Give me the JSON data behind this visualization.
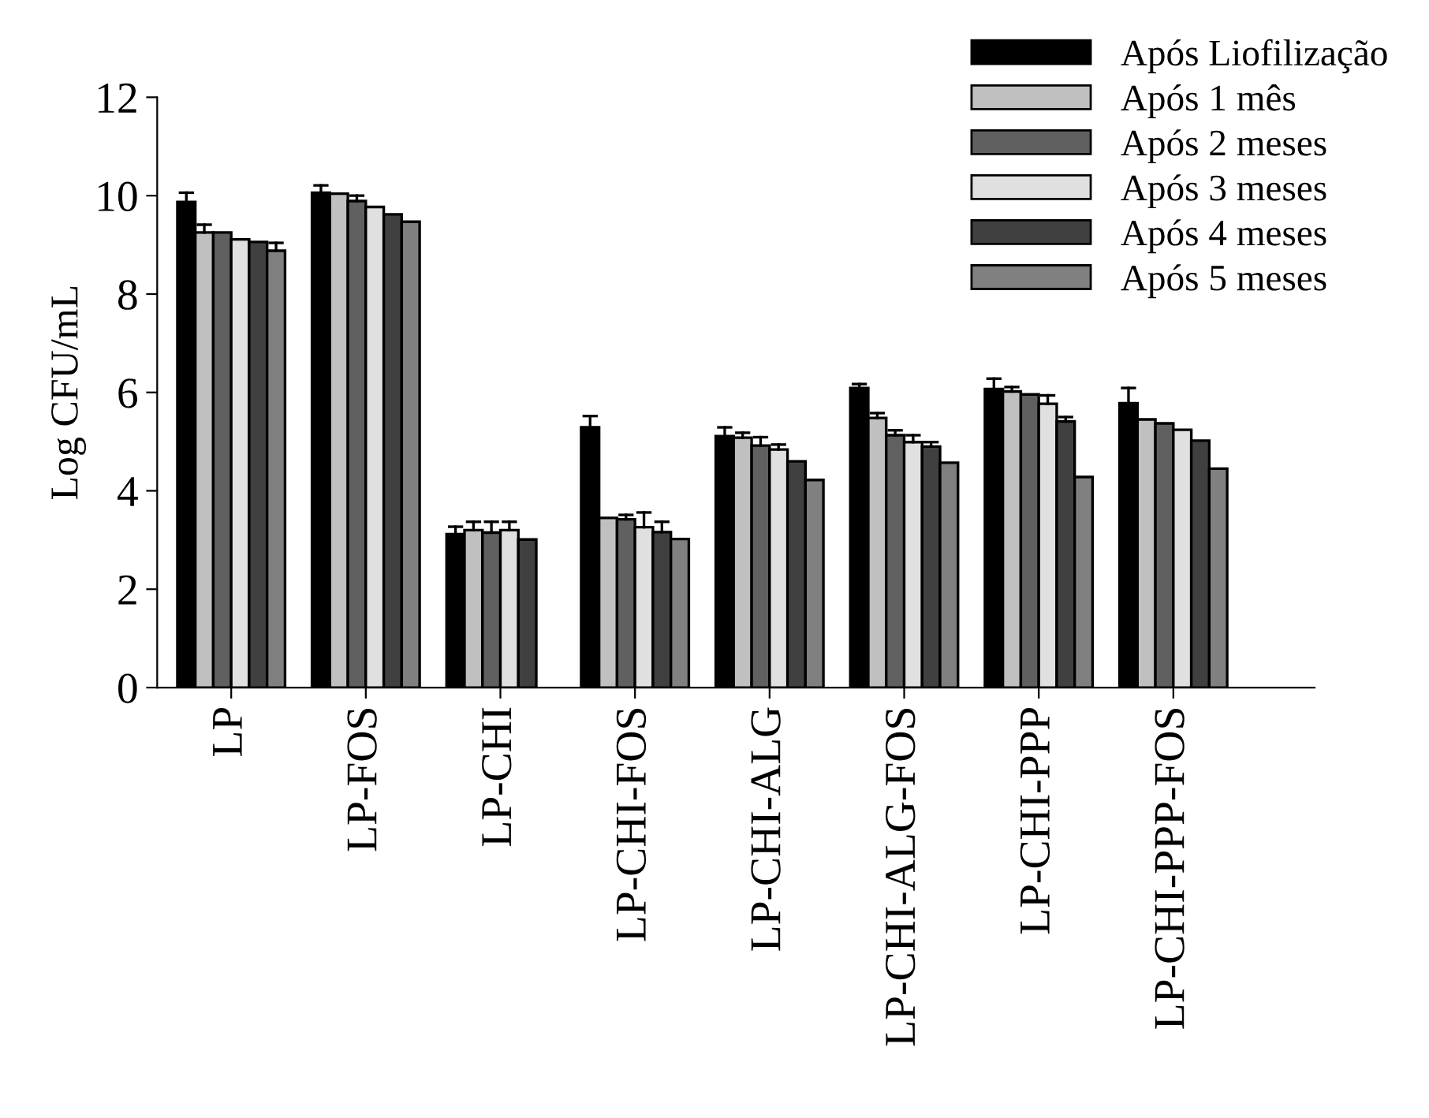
{
  "chart_data": {
    "type": "bar",
    "ylabel": "Log CFU/mL",
    "categories": [
      "LP",
      "LP-FOS",
      "LP-CHI",
      "LP-CHI-FOS",
      "LP-CHI-ALG",
      "LP-CHI-ALG-FOS",
      "LP-CHI-PPP",
      "LP-CHI-PPP-FOS"
    ],
    "ylim": [
      0,
      12
    ],
    "yticks": [
      0,
      2,
      4,
      6,
      8,
      10,
      12
    ],
    "grid": false,
    "legend": "top right",
    "series": [
      {
        "name": "Após Liofilização",
        "color": "#000000",
        "values": [
          9.87,
          10.06,
          3.12,
          5.29,
          5.11,
          6.09,
          6.07,
          5.78
        ],
        "errors": [
          [
            9.87,
            10.06
          ],
          [
            10.06,
            10.21
          ],
          [
            3.12,
            3.27
          ],
          [
            5.29,
            5.52
          ],
          [
            5.11,
            5.29
          ],
          [
            6.09,
            6.17
          ],
          [
            6.07,
            6.28
          ],
          [
            5.78,
            6.09
          ]
        ]
      },
      {
        "name": "Após 1 mês",
        "color": "#c0c0c0",
        "values": [
          9.25,
          10.04,
          3.2,
          3.45,
          5.08,
          5.48,
          6.02,
          5.45
        ],
        "errors": [
          [
            9.25,
            9.41
          ],
          null,
          [
            3.2,
            3.37
          ],
          null,
          [
            5.08,
            5.18
          ],
          [
            5.48,
            5.58
          ],
          [
            6.02,
            6.11
          ],
          null
        ]
      },
      {
        "name": "Após 2 meses",
        "color": "#606060",
        "values": [
          9.25,
          9.89,
          3.15,
          3.42,
          4.92,
          5.13,
          5.96,
          5.37
        ],
        "errors": [
          null,
          [
            9.89,
            10.0
          ],
          [
            3.15,
            3.37
          ],
          [
            3.42,
            3.51
          ],
          [
            4.92,
            5.09
          ],
          [
            5.13,
            5.23
          ],
          null,
          null
        ]
      },
      {
        "name": "Após 3 meses",
        "color": "#e0e0e0",
        "values": [
          9.11,
          9.77,
          3.2,
          3.26,
          4.84,
          4.99,
          5.77,
          5.24
        ],
        "errors": [
          null,
          null,
          [
            3.2,
            3.37
          ],
          [
            3.26,
            3.56
          ],
          [
            4.84,
            4.94
          ],
          [
            4.99,
            5.13
          ],
          [
            5.77,
            5.94
          ],
          null
        ]
      },
      {
        "name": "Após 4 meses",
        "color": "#404040",
        "values": [
          9.06,
          9.62,
          3.01,
          3.16,
          4.6,
          4.9,
          5.41,
          5.02
        ],
        "errors": [
          null,
          null,
          null,
          [
            3.16,
            3.37
          ],
          null,
          [
            4.9,
            4.99
          ],
          [
            5.41,
            5.5
          ],
          null
        ]
      },
      {
        "name": "Após 5 meses",
        "color": "#808080",
        "values": [
          8.88,
          9.47,
          null,
          3.02,
          4.22,
          4.57,
          4.28,
          4.45
        ],
        "errors": [
          [
            8.88,
            9.04
          ],
          null,
          null,
          null,
          null,
          null,
          null,
          null
        ]
      }
    ]
  }
}
